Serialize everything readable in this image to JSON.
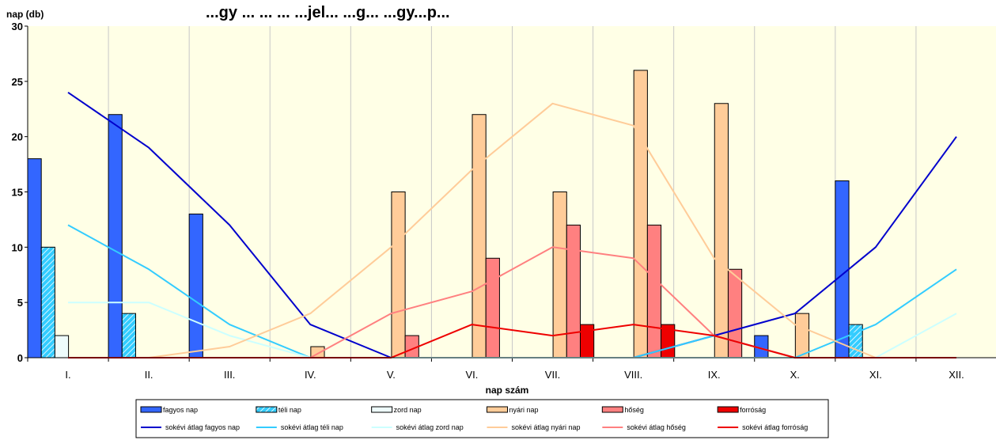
{
  "chart_data": {
    "type": "bar",
    "title": "...gy ... ... ... ...jel... ...g... ...gy...p...",
    "ylabel": "nap (db)",
    "xlabel": "nap szám",
    "ylim": [
      0,
      30
    ],
    "yticks": [
      0,
      5,
      10,
      15,
      20,
      25,
      30
    ],
    "categories": [
      "I.",
      "II.",
      "III.",
      "IV.",
      "V.",
      "VI.",
      "VII.",
      "VIII.",
      "IX.",
      "X.",
      "XI.",
      "XII."
    ],
    "bar_series": [
      {
        "name": "fagyos nap",
        "color": "#3366ff",
        "pattern": "solid",
        "values": [
          18,
          22,
          13,
          0,
          0,
          0,
          0,
          0,
          0,
          2,
          16,
          0
        ]
      },
      {
        "name": "téli nap",
        "color": "#33ccff",
        "pattern": "hatched",
        "values": [
          10,
          4,
          0,
          0,
          0,
          0,
          0,
          0,
          0,
          0,
          3,
          0
        ]
      },
      {
        "name": "zord nap",
        "color": "#eefcfc",
        "pattern": "solid",
        "values": [
          2,
          0,
          0,
          0,
          0,
          0,
          0,
          0,
          0,
          0,
          0,
          0
        ]
      },
      {
        "name": "nyári nap",
        "color": "#ffcc99",
        "pattern": "solid",
        "values": [
          0,
          0,
          0,
          1,
          15,
          22,
          15,
          26,
          23,
          4,
          0,
          0
        ]
      },
      {
        "name": "hőség",
        "color": "#ff8080",
        "pattern": "solid",
        "values": [
          0,
          0,
          0,
          0,
          2,
          9,
          12,
          12,
          8,
          0,
          0,
          0
        ]
      },
      {
        "name": "forróság",
        "color": "#ee0000",
        "pattern": "solid",
        "values": [
          0,
          0,
          0,
          0,
          0,
          0,
          3,
          3,
          0,
          0,
          0,
          0
        ]
      }
    ],
    "line_series": [
      {
        "name": "sokévi átlag fagyos nap",
        "color": "#0000cc",
        "values": [
          24,
          19,
          12,
          3,
          0,
          0,
          0,
          0,
          2,
          4,
          10,
          20
        ]
      },
      {
        "name": "sokévi átlag téli nap",
        "color": "#33ccff",
        "values": [
          12,
          8,
          3,
          0,
          0,
          0,
          0,
          0,
          2,
          0,
          3,
          8
        ]
      },
      {
        "name": "sokévi átlag zord nap",
        "color": "#ccffff",
        "values": [
          5,
          5,
          2,
          0,
          0,
          0,
          0,
          0,
          0,
          0,
          0,
          4
        ]
      },
      {
        "name": "sokévi átlag nyári nap",
        "color": "#ffcc99",
        "values": [
          0,
          0,
          1,
          4,
          10,
          17,
          23,
          21,
          9,
          3,
          0,
          0
        ]
      },
      {
        "name": "sokévi átlag hőség",
        "color": "#ff8080",
        "values": [
          0,
          0,
          0,
          0,
          4,
          6,
          10,
          9,
          2,
          0,
          0,
          0
        ]
      },
      {
        "name": "sokévi átlag forróság",
        "color": "#ee0000",
        "values": [
          0,
          0,
          0,
          0,
          0,
          3,
          2,
          3,
          2,
          0,
          0,
          0
        ]
      }
    ],
    "plot_background": "#ffffe6",
    "grid": "vertical",
    "legend_position": "bottom"
  }
}
